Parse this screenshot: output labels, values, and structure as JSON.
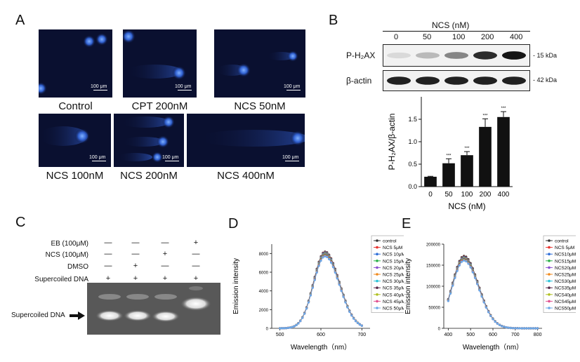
{
  "panel_labels": {
    "a": "A",
    "b": "B",
    "c": "C",
    "d": "D",
    "e": "E"
  },
  "panel_a": {
    "scale_bar": "100 μm",
    "images": [
      {
        "caption": "Control"
      },
      {
        "caption": "CPT 200nM"
      },
      {
        "caption": "NCS 50nM"
      },
      {
        "caption": "NCS 100nM"
      },
      {
        "caption": "NCS 200nM"
      },
      {
        "caption": "NCS 400nM"
      }
    ]
  },
  "panel_b": {
    "conc_title": "NCS (nM)",
    "concentrations": [
      "0",
      "50",
      "100",
      "200",
      "400"
    ],
    "rows": [
      {
        "label": "P-H₂AX",
        "kda": "- 15 kDa",
        "intensities": [
          0.08,
          0.22,
          0.45,
          0.85,
          0.95
        ]
      },
      {
        "label": "β-actin",
        "kda": "- 42 kDa",
        "intensities": [
          0.9,
          0.9,
          0.9,
          0.9,
          0.9
        ]
      }
    ],
    "significance": "***",
    "chart_data": {
      "type": "bar",
      "categories": [
        "0",
        "50",
        "100",
        "200",
        "400"
      ],
      "values": [
        0.22,
        0.52,
        0.7,
        1.33,
        1.55
      ],
      "errors": [
        0.01,
        0.1,
        0.08,
        0.18,
        0.12
      ],
      "annotations": [
        "",
        "***",
        "***",
        "***",
        "***"
      ],
      "xlabel": "NCS (nM)",
      "ylabel": "P-H₂AX/β-actin",
      "ylim": [
        0,
        2.0
      ],
      "yticks": [
        "0.0",
        "0.5",
        "1.0",
        "1.5"
      ]
    }
  },
  "panel_c": {
    "row_labels": [
      "EB (100μM)",
      "NCS (100μM)",
      "DMSO",
      "Supercoiled DNA"
    ],
    "matrix": [
      [
        "—",
        "—",
        "—",
        "+"
      ],
      [
        "—",
        "—",
        "+",
        "—"
      ],
      [
        "—",
        "+",
        "—",
        "—"
      ],
      [
        "+",
        "+",
        "+",
        "+"
      ]
    ],
    "arrow_label": "Supercoiled DNA"
  },
  "panel_d": {
    "chart_data": {
      "type": "line",
      "x": [
        500,
        505,
        510,
        515,
        520,
        525,
        530,
        535,
        540,
        545,
        550,
        555,
        560,
        565,
        570,
        575,
        580,
        585,
        590,
        595,
        600,
        605,
        610,
        615,
        620,
        625,
        630,
        635,
        640,
        645,
        650,
        655,
        660,
        665,
        670,
        675,
        680,
        685,
        690,
        695,
        700
      ],
      "series": [
        {
          "name": "control",
          "peak": 8200,
          "color": "#333333"
        },
        {
          "name": "NCS 5μM",
          "peak": 8150,
          "color": "#e8332f"
        },
        {
          "name": "NCS 10μM",
          "peak": 8100,
          "color": "#2f6fd8"
        },
        {
          "name": "NCS 15μM",
          "peak": 8050,
          "color": "#2bb04a"
        },
        {
          "name": "NCS 20μM",
          "peak": 8000,
          "color": "#8a4fd0"
        },
        {
          "name": "NCS 25μM",
          "peak": 7950,
          "color": "#f08a1c"
        },
        {
          "name": "NCS 30μM",
          "peak": 7900,
          "color": "#2cc3d8"
        },
        {
          "name": "NCS 35μM",
          "peak": 7850,
          "color": "#5a2a4a"
        },
        {
          "name": "NCS 40μM",
          "peak": 7800,
          "color": "#b0c020"
        },
        {
          "name": "NCS 45μM",
          "peak": 7750,
          "color": "#e05090"
        },
        {
          "name": "NCS 50μM",
          "peak": 7700,
          "color": "#6aa8e8"
        }
      ],
      "xlabel": "Wavelength（nm）",
      "ylabel": "Emission intensity",
      "xlim": [
        480,
        720
      ],
      "ylim": [
        0,
        9000
      ],
      "xticks": [
        "500",
        "600",
        "700"
      ],
      "yticks": [
        "0",
        "2000",
        "4000",
        "6000",
        "8000"
      ]
    }
  },
  "panel_e": {
    "chart_data": {
      "type": "line",
      "x": [
        400,
        410,
        420,
        430,
        440,
        450,
        460,
        470,
        480,
        490,
        500,
        510,
        520,
        530,
        540,
        550,
        560,
        570,
        580,
        590,
        600,
        610,
        620,
        630,
        640,
        650,
        660,
        670,
        680,
        690,
        700,
        710,
        720,
        730,
        740,
        750,
        760,
        770,
        780,
        790,
        800
      ],
      "series": [
        {
          "name": "control",
          "peak": 172000,
          "color": "#333333"
        },
        {
          "name": "NCS 5μM",
          "peak": 170000,
          "color": "#e8332f"
        },
        {
          "name": "NCS10μM",
          "peak": 169000,
          "color": "#2f6fd8"
        },
        {
          "name": "NCS15μM",
          "peak": 168000,
          "color": "#2bb04a"
        },
        {
          "name": "NCS20μM",
          "peak": 167000,
          "color": "#8a4fd0"
        },
        {
          "name": "NCS25μM",
          "peak": 166000,
          "color": "#f08a1c"
        },
        {
          "name": "NCS30μM",
          "peak": 165000,
          "color": "#2cc3d8"
        },
        {
          "name": "NCS35μM",
          "peak": 164000,
          "color": "#5a2a4a"
        },
        {
          "name": "NCS40μM",
          "peak": 163000,
          "color": "#b0c020"
        },
        {
          "name": "NCS45μM",
          "peak": 162000,
          "color": "#e05090"
        },
        {
          "name": "NCS50μM",
          "peak": 161000,
          "color": "#6aa8e8"
        }
      ],
      "xlabel": "Wavelength（nm）",
      "ylabel": "Emission intensity",
      "xlim": [
        380,
        820
      ],
      "ylim": [
        0,
        200000
      ],
      "xticks": [
        "400",
        "500",
        "600",
        "700",
        "800"
      ],
      "yticks": [
        "0",
        "50000",
        "100000",
        "150000",
        "200000"
      ]
    }
  }
}
